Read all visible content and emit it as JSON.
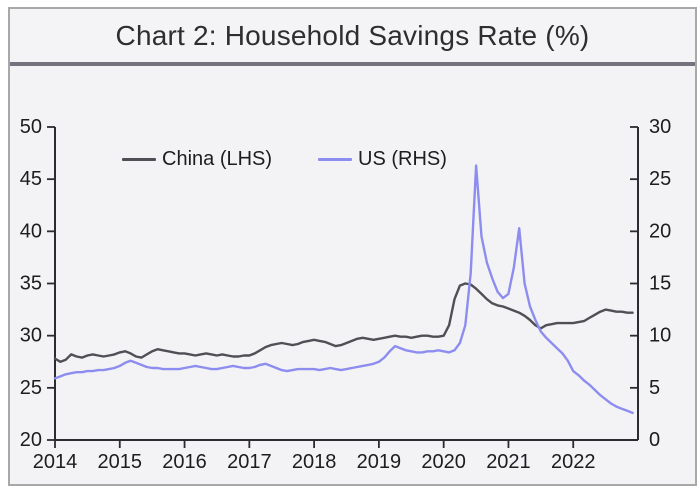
{
  "window_title": "Chart 2: Household Savings Rate (%)",
  "colors": {
    "window_background": "#f3f3f6",
    "window_border": "#a8a8a8",
    "title_divider": "#73737d",
    "axis": "#2b2b31",
    "tick_label": "#1d1d1f"
  },
  "chart_data": {
    "type": "line",
    "title": "Chart 2: Household Savings Rate (%)",
    "x_start_year": 2014,
    "x_interval": "monthly",
    "x_tick_labels": [
      "2014",
      "2015",
      "2016",
      "2017",
      "2018",
      "2019",
      "2020",
      "2021",
      "2022"
    ],
    "left_axis": {
      "ylim": [
        20,
        50
      ],
      "ticks": [
        50,
        45,
        40,
        35,
        30,
        25,
        20
      ]
    },
    "right_axis": {
      "ylim": [
        0,
        30
      ],
      "ticks": [
        30,
        25,
        20,
        15,
        10,
        5,
        0
      ]
    },
    "grid": false,
    "legend_position": "top-left-inside",
    "series": [
      {
        "name": "China (LHS)",
        "axis": "left",
        "color": "#4f4f55",
        "values": [
          27.8,
          27.5,
          27.7,
          28.2,
          28.0,
          27.9,
          28.1,
          28.2,
          28.1,
          28.0,
          28.1,
          28.2,
          28.4,
          28.5,
          28.3,
          28.0,
          27.9,
          28.2,
          28.5,
          28.7,
          28.6,
          28.5,
          28.4,
          28.3,
          28.3,
          28.2,
          28.1,
          28.2,
          28.3,
          28.2,
          28.1,
          28.2,
          28.1,
          28.0,
          28.0,
          28.1,
          28.1,
          28.3,
          28.6,
          28.9,
          29.1,
          29.2,
          29.3,
          29.2,
          29.1,
          29.2,
          29.4,
          29.5,
          29.6,
          29.5,
          29.4,
          29.2,
          29.0,
          29.1,
          29.3,
          29.5,
          29.7,
          29.8,
          29.7,
          29.6,
          29.7,
          29.8,
          29.9,
          30.0,
          29.9,
          29.9,
          29.8,
          29.9,
          30.0,
          30.0,
          29.9,
          29.9,
          30.0,
          31.0,
          33.5,
          34.8,
          35.0,
          34.9,
          34.5,
          34.0,
          33.5,
          33.1,
          32.9,
          32.8,
          32.6,
          32.4,
          32.2,
          31.9,
          31.5,
          31.0,
          30.7,
          31.0,
          31.1,
          31.2,
          31.2,
          31.2,
          31.2,
          31.3,
          31.4,
          31.7,
          32.0,
          32.3,
          32.5,
          32.4,
          32.3,
          32.3,
          32.2,
          32.2
        ]
      },
      {
        "name": "US (RHS)",
        "axis": "right",
        "color": "#8d8df0",
        "values": [
          5.9,
          6.1,
          6.3,
          6.4,
          6.5,
          6.5,
          6.6,
          6.6,
          6.7,
          6.7,
          6.8,
          6.9,
          7.1,
          7.4,
          7.6,
          7.4,
          7.2,
          7.0,
          6.9,
          6.9,
          6.8,
          6.8,
          6.8,
          6.8,
          6.9,
          7.0,
          7.1,
          7.0,
          6.9,
          6.8,
          6.8,
          6.9,
          7.0,
          7.1,
          7.0,
          6.9,
          6.9,
          7.0,
          7.2,
          7.3,
          7.1,
          6.9,
          6.7,
          6.6,
          6.7,
          6.8,
          6.8,
          6.8,
          6.8,
          6.7,
          6.8,
          6.9,
          6.8,
          6.7,
          6.8,
          6.9,
          7.0,
          7.1,
          7.2,
          7.3,
          7.5,
          7.9,
          8.5,
          9.0,
          8.8,
          8.6,
          8.5,
          8.4,
          8.4,
          8.5,
          8.5,
          8.6,
          8.5,
          8.4,
          8.6,
          9.3,
          11.0,
          16.0,
          26.3,
          19.5,
          17.0,
          15.5,
          14.2,
          13.6,
          14.0,
          16.5,
          20.3,
          15.0,
          12.8,
          11.5,
          10.4,
          9.8,
          9.3,
          8.8,
          8.3,
          7.6,
          6.6,
          6.2,
          5.7,
          5.3,
          4.8,
          4.3,
          3.9,
          3.5,
          3.2,
          3.0,
          2.8,
          2.6
        ]
      }
    ]
  }
}
